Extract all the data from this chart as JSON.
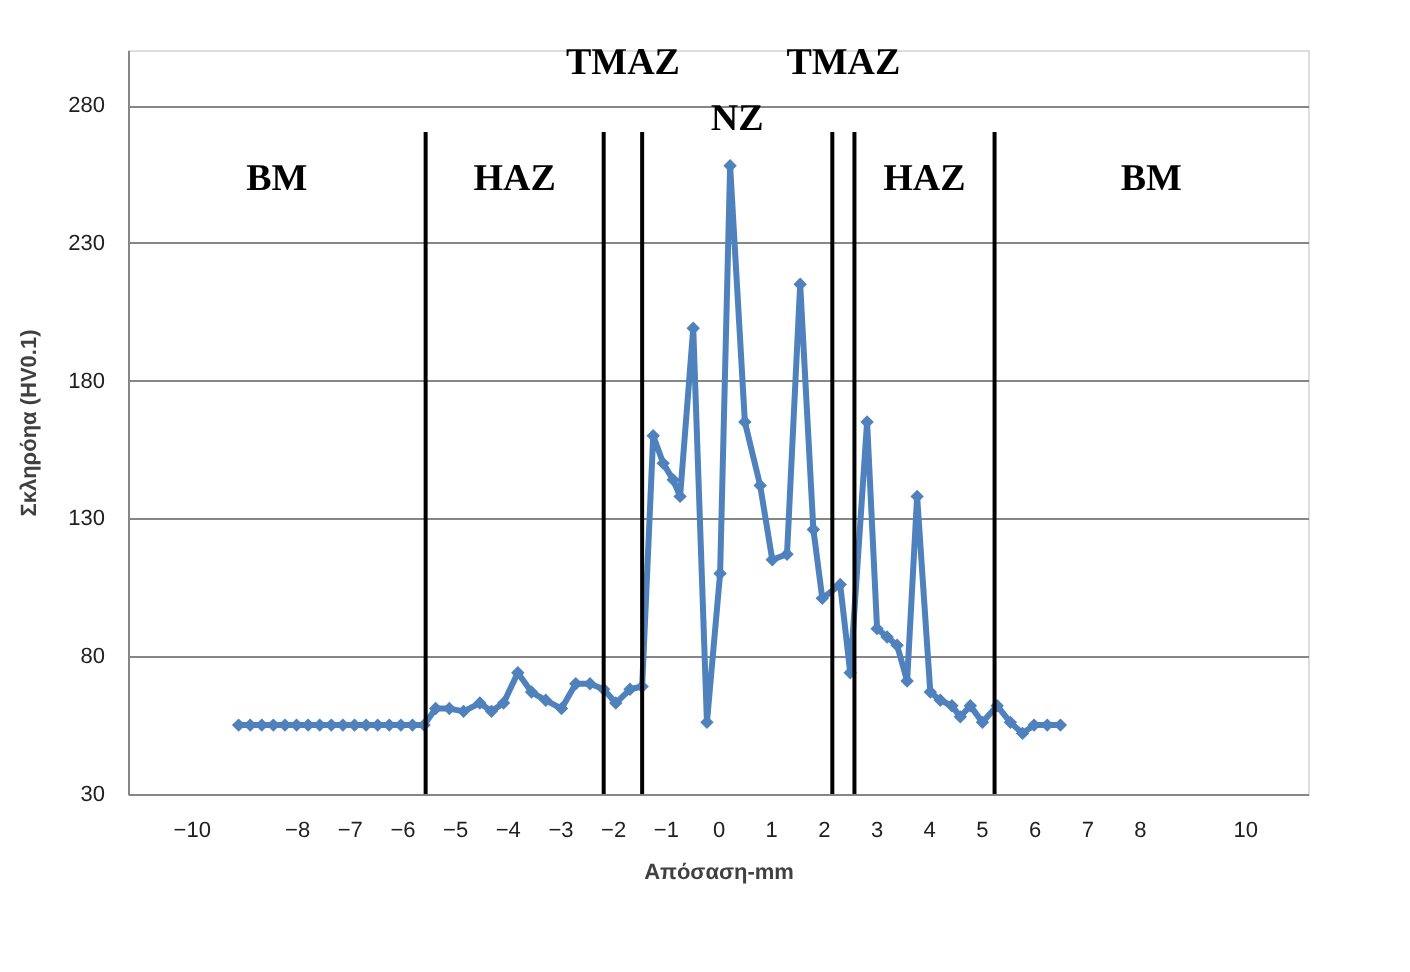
{
  "chart_data": {
    "type": "line",
    "xlabel": "Απόσαση-mm",
    "ylabel": "Σκληρόηα (HV0.1)",
    "xlim": [
      -11.2,
      11.2
    ],
    "ylim": [
      30,
      300
    ],
    "xticks": [
      -10,
      -8,
      -7,
      -6,
      -5,
      -4,
      -3,
      -2,
      -1,
      0,
      1,
      2,
      3,
      4,
      5,
      6,
      7,
      8,
      10
    ],
    "yticks": [
      30,
      80,
      130,
      180,
      230,
      280
    ],
    "grid": "y",
    "marker": "diamond",
    "line_style": "solid",
    "series": [
      {
        "color": "#4f81bd",
        "x": [
          -9.1,
          -8.88,
          -8.66,
          -8.44,
          -8.22,
          -8.0,
          -7.78,
          -7.56,
          -7.34,
          -7.12,
          -6.9,
          -6.68,
          -6.46,
          -6.24,
          -6.02,
          -5.8,
          -5.58,
          -5.36,
          -5.1,
          -4.83,
          -4.52,
          -4.3,
          -4.07,
          -3.8,
          -3.54,
          -3.27,
          -2.97,
          -2.7,
          -2.43,
          -2.17,
          -1.94,
          -1.67,
          -1.44,
          -1.23,
          -1.04,
          -0.85,
          -0.72,
          -0.47,
          -0.21,
          0.04,
          0.23,
          0.51,
          0.8,
          1.03,
          1.31,
          1.56,
          1.81,
          1.98,
          2.32,
          2.51,
          2.83,
          3.02,
          3.21,
          3.4,
          3.59,
          3.78,
          4.03,
          4.22,
          4.44,
          4.6,
          4.79,
          5.02,
          5.3,
          5.55,
          5.78,
          6.0,
          6.25,
          6.5
        ],
        "values": [
          55,
          55,
          55,
          55,
          55,
          55,
          55,
          55,
          55,
          55,
          55,
          55,
          55,
          55,
          55,
          55,
          55,
          61,
          61,
          60,
          63,
          60,
          63,
          74,
          67,
          64,
          61,
          70,
          70,
          68,
          63,
          68,
          69,
          160,
          150,
          144,
          138,
          199,
          56,
          110,
          258,
          165,
          142,
          115,
          117,
          215,
          126,
          101,
          106,
          74,
          165,
          90,
          87,
          84,
          71,
          138,
          67,
          64,
          62,
          58,
          62,
          56,
          62,
          56,
          52,
          55,
          55,
          55
        ]
      }
    ],
    "ref_lines": [
      {
        "axis": "x",
        "value": -5.55,
        "color": "#000000"
      },
      {
        "axis": "x",
        "value": -2.17,
        "color": "#000000"
      },
      {
        "axis": "x",
        "value": -1.44,
        "color": "#000000"
      },
      {
        "axis": "x",
        "value": 2.17,
        "color": "#000000"
      },
      {
        "axis": "x",
        "value": 2.59,
        "color": "#000000"
      },
      {
        "axis": "x",
        "value": 5.25,
        "color": "#000000"
      }
    ],
    "annotations": [
      "BM",
      "HAZ",
      "TMAZ",
      "NZ",
      "TMAZ",
      "HAZ",
      "BM"
    ]
  }
}
